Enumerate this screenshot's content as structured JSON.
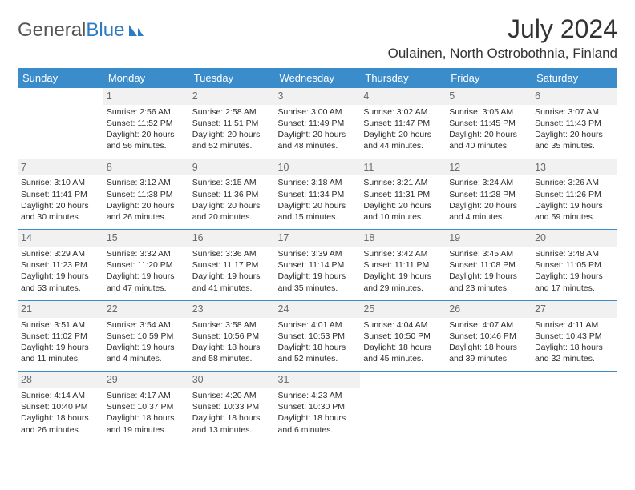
{
  "brand": {
    "part1": "General",
    "part2": "Blue"
  },
  "title": "July 2024",
  "location": "Oulainen, North Ostrobothnia, Finland",
  "colors": {
    "header_bg": "#3b8ccb",
    "header_text": "#ffffff",
    "rule": "#3b8ccb",
    "daynum_bg": "#f1f1f2",
    "body_text": "#2c2c2c"
  },
  "dayHeaders": [
    "Sunday",
    "Monday",
    "Tuesday",
    "Wednesday",
    "Thursday",
    "Friday",
    "Saturday"
  ],
  "weeks": [
    [
      null,
      {
        "n": "1",
        "sr": "Sunrise: 2:56 AM",
        "ss": "Sunset: 11:52 PM",
        "dl": "Daylight: 20 hours and 56 minutes."
      },
      {
        "n": "2",
        "sr": "Sunrise: 2:58 AM",
        "ss": "Sunset: 11:51 PM",
        "dl": "Daylight: 20 hours and 52 minutes."
      },
      {
        "n": "3",
        "sr": "Sunrise: 3:00 AM",
        "ss": "Sunset: 11:49 PM",
        "dl": "Daylight: 20 hours and 48 minutes."
      },
      {
        "n": "4",
        "sr": "Sunrise: 3:02 AM",
        "ss": "Sunset: 11:47 PM",
        "dl": "Daylight: 20 hours and 44 minutes."
      },
      {
        "n": "5",
        "sr": "Sunrise: 3:05 AM",
        "ss": "Sunset: 11:45 PM",
        "dl": "Daylight: 20 hours and 40 minutes."
      },
      {
        "n": "6",
        "sr": "Sunrise: 3:07 AM",
        "ss": "Sunset: 11:43 PM",
        "dl": "Daylight: 20 hours and 35 minutes."
      }
    ],
    [
      {
        "n": "7",
        "sr": "Sunrise: 3:10 AM",
        "ss": "Sunset: 11:41 PM",
        "dl": "Daylight: 20 hours and 30 minutes."
      },
      {
        "n": "8",
        "sr": "Sunrise: 3:12 AM",
        "ss": "Sunset: 11:38 PM",
        "dl": "Daylight: 20 hours and 26 minutes."
      },
      {
        "n": "9",
        "sr": "Sunrise: 3:15 AM",
        "ss": "Sunset: 11:36 PM",
        "dl": "Daylight: 20 hours and 20 minutes."
      },
      {
        "n": "10",
        "sr": "Sunrise: 3:18 AM",
        "ss": "Sunset: 11:34 PM",
        "dl": "Daylight: 20 hours and 15 minutes."
      },
      {
        "n": "11",
        "sr": "Sunrise: 3:21 AM",
        "ss": "Sunset: 11:31 PM",
        "dl": "Daylight: 20 hours and 10 minutes."
      },
      {
        "n": "12",
        "sr": "Sunrise: 3:24 AM",
        "ss": "Sunset: 11:28 PM",
        "dl": "Daylight: 20 hours and 4 minutes."
      },
      {
        "n": "13",
        "sr": "Sunrise: 3:26 AM",
        "ss": "Sunset: 11:26 PM",
        "dl": "Daylight: 19 hours and 59 minutes."
      }
    ],
    [
      {
        "n": "14",
        "sr": "Sunrise: 3:29 AM",
        "ss": "Sunset: 11:23 PM",
        "dl": "Daylight: 19 hours and 53 minutes."
      },
      {
        "n": "15",
        "sr": "Sunrise: 3:32 AM",
        "ss": "Sunset: 11:20 PM",
        "dl": "Daylight: 19 hours and 47 minutes."
      },
      {
        "n": "16",
        "sr": "Sunrise: 3:36 AM",
        "ss": "Sunset: 11:17 PM",
        "dl": "Daylight: 19 hours and 41 minutes."
      },
      {
        "n": "17",
        "sr": "Sunrise: 3:39 AM",
        "ss": "Sunset: 11:14 PM",
        "dl": "Daylight: 19 hours and 35 minutes."
      },
      {
        "n": "18",
        "sr": "Sunrise: 3:42 AM",
        "ss": "Sunset: 11:11 PM",
        "dl": "Daylight: 19 hours and 29 minutes."
      },
      {
        "n": "19",
        "sr": "Sunrise: 3:45 AM",
        "ss": "Sunset: 11:08 PM",
        "dl": "Daylight: 19 hours and 23 minutes."
      },
      {
        "n": "20",
        "sr": "Sunrise: 3:48 AM",
        "ss": "Sunset: 11:05 PM",
        "dl": "Daylight: 19 hours and 17 minutes."
      }
    ],
    [
      {
        "n": "21",
        "sr": "Sunrise: 3:51 AM",
        "ss": "Sunset: 11:02 PM",
        "dl": "Daylight: 19 hours and 11 minutes."
      },
      {
        "n": "22",
        "sr": "Sunrise: 3:54 AM",
        "ss": "Sunset: 10:59 PM",
        "dl": "Daylight: 19 hours and 4 minutes."
      },
      {
        "n": "23",
        "sr": "Sunrise: 3:58 AM",
        "ss": "Sunset: 10:56 PM",
        "dl": "Daylight: 18 hours and 58 minutes."
      },
      {
        "n": "24",
        "sr": "Sunrise: 4:01 AM",
        "ss": "Sunset: 10:53 PM",
        "dl": "Daylight: 18 hours and 52 minutes."
      },
      {
        "n": "25",
        "sr": "Sunrise: 4:04 AM",
        "ss": "Sunset: 10:50 PM",
        "dl": "Daylight: 18 hours and 45 minutes."
      },
      {
        "n": "26",
        "sr": "Sunrise: 4:07 AM",
        "ss": "Sunset: 10:46 PM",
        "dl": "Daylight: 18 hours and 39 minutes."
      },
      {
        "n": "27",
        "sr": "Sunrise: 4:11 AM",
        "ss": "Sunset: 10:43 PM",
        "dl": "Daylight: 18 hours and 32 minutes."
      }
    ],
    [
      {
        "n": "28",
        "sr": "Sunrise: 4:14 AM",
        "ss": "Sunset: 10:40 PM",
        "dl": "Daylight: 18 hours and 26 minutes."
      },
      {
        "n": "29",
        "sr": "Sunrise: 4:17 AM",
        "ss": "Sunset: 10:37 PM",
        "dl": "Daylight: 18 hours and 19 minutes."
      },
      {
        "n": "30",
        "sr": "Sunrise: 4:20 AM",
        "ss": "Sunset: 10:33 PM",
        "dl": "Daylight: 18 hours and 13 minutes."
      },
      {
        "n": "31",
        "sr": "Sunrise: 4:23 AM",
        "ss": "Sunset: 10:30 PM",
        "dl": "Daylight: 18 hours and 6 minutes."
      },
      null,
      null,
      null
    ]
  ]
}
